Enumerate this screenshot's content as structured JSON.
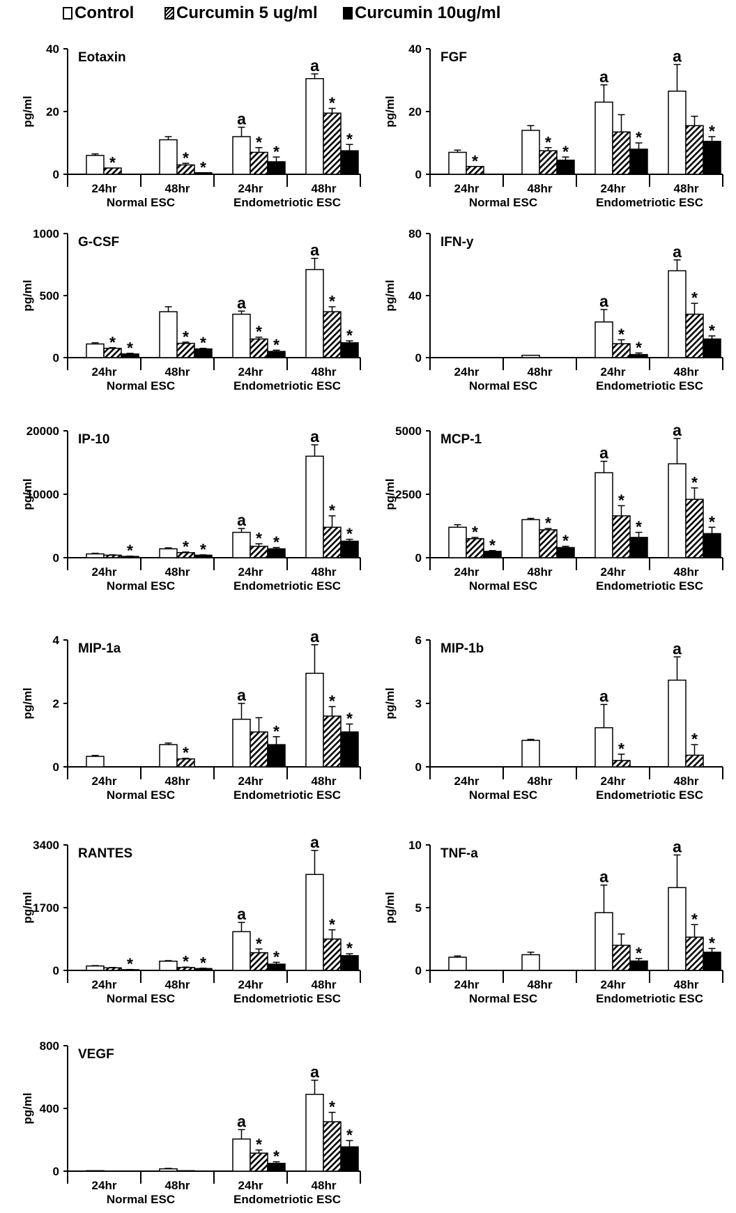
{
  "legend": {
    "items": [
      {
        "label": "Control",
        "pattern": "open"
      },
      {
        "label": "Curcumin 5 ug/ml",
        "pattern": "hatched"
      },
      {
        "label": "Curcumin 10ug/ml",
        "pattern": "solid"
      }
    ]
  },
  "chart_data": [
    {
      "type": "bar",
      "title": "Eotaxin",
      "ylabel": "pg/ml",
      "ylim": [
        0,
        40
      ],
      "yticks": [
        0,
        20,
        40
      ],
      "categories": [
        "24hr",
        "48hr",
        "24hr",
        "48hr"
      ],
      "groups": [
        "Normal ESC",
        "Endometriotic ESC"
      ],
      "series": [
        {
          "name": "Control",
          "values": [
            6,
            11,
            12,
            30.5
          ],
          "errors": [
            0.5,
            1,
            3,
            1.5
          ],
          "annotations": [
            "",
            "",
            "a",
            "a"
          ]
        },
        {
          "name": "Curcumin 5 ug/ml",
          "values": [
            2,
            3,
            7,
            19.5
          ],
          "errors": [
            0,
            0.5,
            1.5,
            1.5
          ],
          "annotations": [
            "*",
            "*",
            "*",
            "*"
          ]
        },
        {
          "name": "Curcumin 10ug/ml",
          "values": [
            0,
            0.5,
            4,
            7.5
          ],
          "errors": [
            0,
            0,
            1.5,
            2
          ],
          "annotations": [
            "",
            "*",
            "*",
            "*"
          ]
        }
      ]
    },
    {
      "type": "bar",
      "title": "FGF",
      "ylabel": "pg/ml",
      "ylim": [
        0,
        40
      ],
      "yticks": [
        0,
        20,
        40
      ],
      "categories": [
        "24hr",
        "48hr",
        "24hr",
        "48hr"
      ],
      "groups": [
        "Normal ESC",
        "Endometriotic ESC"
      ],
      "series": [
        {
          "name": "Control",
          "values": [
            7,
            14,
            23,
            26.5
          ],
          "errors": [
            0.7,
            1.5,
            5.5,
            8.5
          ],
          "annotations": [
            "",
            "",
            "a",
            "a"
          ]
        },
        {
          "name": "Curcumin 5 ug/ml",
          "values": [
            2.5,
            7.5,
            13.5,
            15.5
          ],
          "errors": [
            0,
            1,
            5.5,
            3
          ],
          "annotations": [
            "*",
            "*",
            "",
            ""
          ]
        },
        {
          "name": "Curcumin 10ug/ml",
          "values": [
            0,
            4.5,
            8,
            10.5
          ],
          "errors": [
            0,
            1,
            2,
            1.5
          ],
          "annotations": [
            "",
            "*",
            "*",
            "*"
          ]
        }
      ]
    },
    {
      "type": "bar",
      "title": "G-CSF",
      "ylabel": "pg/ml",
      "ylim": [
        0,
        1000
      ],
      "yticks": [
        0,
        500,
        1000
      ],
      "categories": [
        "24hr",
        "48hr",
        "24hr",
        "48hr"
      ],
      "groups": [
        "Normal ESC",
        "Endometriotic ESC"
      ],
      "series": [
        {
          "name": "Control",
          "values": [
            110,
            370,
            350,
            710
          ],
          "errors": [
            10,
            40,
            25,
            90
          ],
          "annotations": [
            "",
            "",
            "a",
            "a"
          ]
        },
        {
          "name": "Curcumin 5 ug/ml",
          "values": [
            75,
            115,
            150,
            370
          ],
          "errors": [
            5,
            10,
            15,
            40
          ],
          "annotations": [
            "*",
            "*",
            "*",
            "*"
          ]
        },
        {
          "name": "Curcumin 10ug/ml",
          "values": [
            30,
            70,
            50,
            120
          ],
          "errors": [
            5,
            5,
            10,
            15
          ],
          "annotations": [
            "*",
            "*",
            "*",
            "*"
          ]
        }
      ]
    },
    {
      "type": "bar",
      "title": "IFN-y",
      "ylabel": "pg/ml",
      "ylim": [
        0,
        80
      ],
      "yticks": [
        0,
        40,
        80
      ],
      "categories": [
        "24hr",
        "48hr",
        "24hr",
        "48hr"
      ],
      "groups": [
        "Normal ESC",
        "Endometriotic ESC"
      ],
      "series": [
        {
          "name": "Control",
          "values": [
            0,
            1.5,
            23,
            56
          ],
          "errors": [
            0,
            0,
            8,
            7
          ],
          "annotations": [
            "",
            "",
            "a",
            "a"
          ]
        },
        {
          "name": "Curcumin 5 ug/ml",
          "values": [
            0,
            0,
            9,
            28
          ],
          "errors": [
            0,
            0,
            2.5,
            7
          ],
          "annotations": [
            "",
            "",
            "*",
            "*"
          ]
        },
        {
          "name": "Curcumin 10ug/ml",
          "values": [
            0,
            0,
            2,
            12
          ],
          "errors": [
            0,
            0,
            1,
            2
          ],
          "annotations": [
            "",
            "",
            "*",
            "*"
          ]
        }
      ]
    },
    {
      "type": "bar",
      "title": "IP-10",
      "ylabel": "pg/ml",
      "ylim": [
        0,
        20000
      ],
      "yticks": [
        0,
        10000,
        20000
      ],
      "categories": [
        "24hr",
        "48hr",
        "24hr",
        "48hr"
      ],
      "groups": [
        "Normal ESC",
        "Endometriotic ESC"
      ],
      "series": [
        {
          "name": "Control",
          "values": [
            600,
            1400,
            4000,
            16000
          ],
          "errors": [
            100,
            150,
            600,
            1800
          ],
          "annotations": [
            "",
            "",
            "a",
            "a"
          ]
        },
        {
          "name": "Curcumin 5 ug/ml",
          "values": [
            400,
            800,
            1800,
            4800
          ],
          "errors": [
            50,
            100,
            400,
            1800
          ],
          "annotations": [
            "",
            "*",
            "*",
            "*"
          ]
        },
        {
          "name": "Curcumin 10ug/ml",
          "values": [
            200,
            400,
            1400,
            2600
          ],
          "errors": [
            50,
            50,
            200,
            300
          ],
          "annotations": [
            "*",
            "*",
            "*",
            "*"
          ]
        }
      ]
    },
    {
      "type": "bar",
      "title": "MCP-1",
      "ylabel": "pg/ml",
      "ylim": [
        0,
        5000
      ],
      "yticks": [
        0,
        2500,
        5000
      ],
      "categories": [
        "24hr",
        "48hr",
        "24hr",
        "48hr"
      ],
      "groups": [
        "Normal ESC",
        "Endometriotic ESC"
      ],
      "series": [
        {
          "name": "Control",
          "values": [
            1200,
            1500,
            3350,
            3700
          ],
          "errors": [
            100,
            50,
            450,
            1000
          ],
          "annotations": [
            "",
            "",
            "a",
            "a"
          ]
        },
        {
          "name": "Curcumin 5 ug/ml",
          "values": [
            750,
            1100,
            1650,
            2300
          ],
          "errors": [
            50,
            50,
            400,
            450
          ],
          "annotations": [
            "*",
            "*",
            "*",
            "*"
          ]
        },
        {
          "name": "Curcumin 10ug/ml",
          "values": [
            250,
            400,
            800,
            950
          ],
          "errors": [
            30,
            50,
            200,
            250
          ],
          "annotations": [
            "*",
            "*",
            "*",
            "*"
          ]
        }
      ]
    },
    {
      "type": "bar",
      "title": "MIP-1a",
      "ylabel": "pg/ml",
      "ylim": [
        0,
        4
      ],
      "yticks": [
        0,
        2,
        4
      ],
      "categories": [
        "24hr",
        "48hr",
        "24hr",
        "48hr"
      ],
      "groups": [
        "Normal ESC",
        "Endometriotic ESC"
      ],
      "series": [
        {
          "name": "Control",
          "values": [
            0.33,
            0.7,
            1.5,
            2.95
          ],
          "errors": [
            0.03,
            0.05,
            0.5,
            0.9
          ],
          "annotations": [
            "",
            "",
            "a",
            "a"
          ]
        },
        {
          "name": "Curcumin 5 ug/ml",
          "values": [
            0,
            0.25,
            1.1,
            1.6
          ],
          "errors": [
            0,
            0.02,
            0.45,
            0.3
          ],
          "annotations": [
            "",
            "*",
            "",
            "*"
          ]
        },
        {
          "name": "Curcumin 10ug/ml",
          "values": [
            0,
            0,
            0.7,
            1.1
          ],
          "errors": [
            0,
            0,
            0.25,
            0.25
          ],
          "annotations": [
            "",
            "",
            "*",
            "*"
          ]
        }
      ]
    },
    {
      "type": "bar",
      "title": "MIP-1b",
      "ylabel": "pg/ml",
      "ylim": [
        0,
        6
      ],
      "yticks": [
        0,
        3,
        6
      ],
      "categories": [
        "24hr",
        "48hr",
        "24hr",
        "48hr"
      ],
      "groups": [
        "Normal ESC",
        "Endometriotic ESC"
      ],
      "series": [
        {
          "name": "Control",
          "values": [
            0,
            1.25,
            1.85,
            4.1
          ],
          "errors": [
            0,
            0.05,
            1.1,
            1.1
          ],
          "annotations": [
            "",
            "",
            "a",
            "a"
          ]
        },
        {
          "name": "Curcumin 5 ug/ml",
          "values": [
            0,
            0,
            0.3,
            0.55
          ],
          "errors": [
            0,
            0,
            0.3,
            0.5
          ],
          "annotations": [
            "",
            "",
            "*",
            "*"
          ]
        },
        {
          "name": "Curcumin 10ug/ml",
          "values": [
            0,
            0,
            0,
            0
          ],
          "errors": [
            0,
            0,
            0,
            0
          ],
          "annotations": [
            "",
            "",
            "",
            ""
          ]
        }
      ]
    },
    {
      "type": "bar",
      "title": "RANTES",
      "ylabel": "pg/ml",
      "ylim": [
        0,
        3400
      ],
      "yticks": [
        0,
        1700,
        3400
      ],
      "categories": [
        "24hr",
        "48hr",
        "24hr",
        "48hr"
      ],
      "groups": [
        "Normal ESC",
        "Endometriotic ESC"
      ],
      "series": [
        {
          "name": "Control",
          "values": [
            120,
            250,
            1050,
            2600
          ],
          "errors": [
            10,
            15,
            250,
            650
          ],
          "annotations": [
            "",
            "",
            "a",
            "a"
          ]
        },
        {
          "name": "Curcumin 5 ug/ml",
          "values": [
            70,
            80,
            480,
            850
          ],
          "errors": [
            10,
            10,
            100,
            250
          ],
          "annotations": [
            "",
            "*",
            "*",
            "*"
          ]
        },
        {
          "name": "Curcumin 10ug/ml",
          "values": [
            20,
            50,
            170,
            400
          ],
          "errors": [
            5,
            10,
            50,
            50
          ],
          "annotations": [
            "*",
            "*",
            "*",
            "*"
          ]
        }
      ]
    },
    {
      "type": "bar",
      "title": "TNF-a",
      "ylabel": "pg/ml",
      "ylim": [
        0,
        10
      ],
      "yticks": [
        0,
        5,
        10
      ],
      "categories": [
        "24hr",
        "48hr",
        "24hr",
        "48hr"
      ],
      "groups": [
        "Normal ESC",
        "Endometriotic ESC"
      ],
      "series": [
        {
          "name": "Control",
          "values": [
            1.05,
            1.25,
            4.6,
            6.6
          ],
          "errors": [
            0.1,
            0.2,
            2.2,
            2.6
          ],
          "annotations": [
            "",
            "",
            "a",
            "a"
          ]
        },
        {
          "name": "Curcumin 5 ug/ml",
          "values": [
            0,
            0,
            2,
            2.65
          ],
          "errors": [
            0,
            0,
            0.9,
            1
          ],
          "annotations": [
            "",
            "",
            "",
            "*"
          ]
        },
        {
          "name": "Curcumin 10ug/ml",
          "values": [
            0,
            0,
            0.75,
            1.45
          ],
          "errors": [
            0,
            0,
            0.2,
            0.3
          ],
          "annotations": [
            "",
            "",
            "*",
            "*"
          ]
        }
      ]
    },
    {
      "type": "bar",
      "title": "VEGF",
      "ylabel": "pg/ml",
      "ylim": [
        0,
        800
      ],
      "yticks": [
        0,
        400,
        800
      ],
      "categories": [
        "24hr",
        "48hr",
        "24hr",
        "48hr"
      ],
      "groups": [
        "Normal ESC",
        "Endometriotic ESC"
      ],
      "series": [
        {
          "name": "Control",
          "values": [
            3,
            15,
            205,
            490
          ],
          "errors": [
            0,
            3,
            60,
            90
          ],
          "annotations": [
            "",
            "",
            "a",
            "a"
          ]
        },
        {
          "name": "Curcumin 5 ug/ml",
          "values": [
            0,
            3,
            115,
            315
          ],
          "errors": [
            0,
            0,
            20,
            60
          ],
          "annotations": [
            "",
            "",
            "*",
            "*"
          ]
        },
        {
          "name": "Curcumin 10ug/ml",
          "values": [
            0,
            0,
            50,
            155
          ],
          "errors": [
            0,
            0,
            10,
            40
          ],
          "annotations": [
            "",
            "",
            "*",
            "*"
          ]
        }
      ]
    }
  ]
}
